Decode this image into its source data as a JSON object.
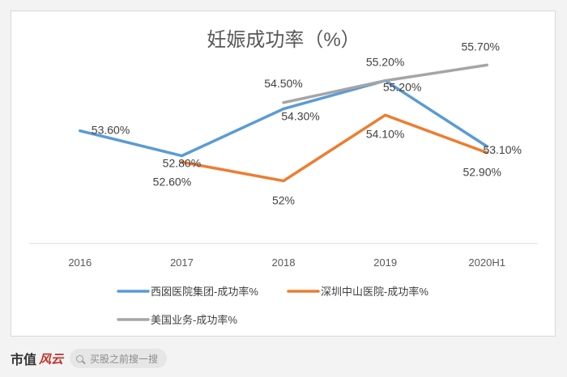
{
  "chart_data": {
    "type": "line",
    "title": "妊娠成功率（%）",
    "categories": [
      "2016",
      "2017",
      "2018",
      "2019",
      "2020H1"
    ],
    "ylim": [
      50.0,
      56.2
    ],
    "grid": false,
    "legend_position": "bottom",
    "series": [
      {
        "name": "西囡医院集团-成功率%",
        "color": "#5b9bd5",
        "values": [
          53.6,
          52.8,
          54.3,
          55.2,
          53.1
        ],
        "labels": [
          "53.60%",
          "52.80%",
          "54.30%",
          "55.20%",
          "53.10%"
        ]
      },
      {
        "name": "深圳中山医院-成功率%",
        "color": "#ed7d31",
        "values": [
          null,
          52.6,
          52.0,
          54.1,
          52.9
        ],
        "labels": [
          "",
          "52.60%",
          "52%",
          "54.10%",
          "52.90%"
        ]
      },
      {
        "name": "美国业务-成功率%",
        "color": "#a5a5a5",
        "values": [
          null,
          null,
          54.5,
          55.2,
          55.7
        ],
        "labels": [
          "",
          "",
          "54.50%",
          "55.20%",
          "55.70%"
        ]
      }
    ]
  },
  "footer": {
    "brand": "市值",
    "logo_text": "风云",
    "search_placeholder": "买股之前搜一搜"
  }
}
